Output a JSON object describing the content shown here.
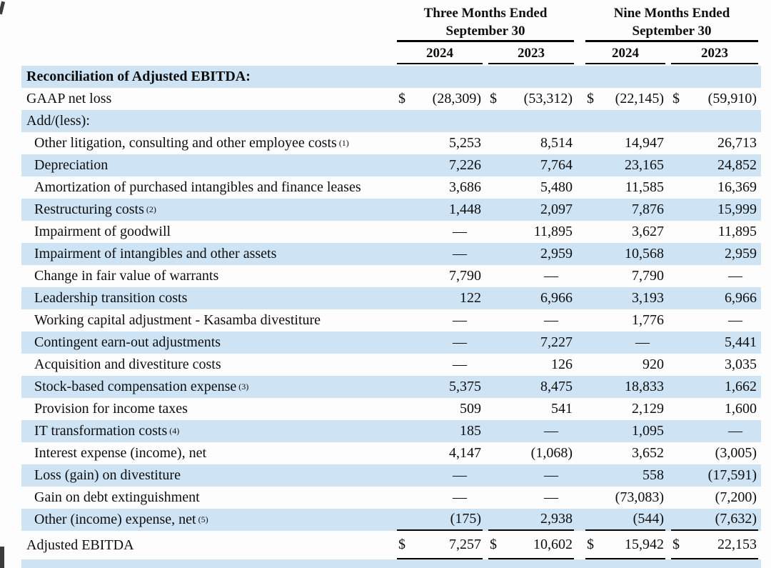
{
  "header": {
    "group1_line1": "Three Months Ended",
    "group1_line2": "September 30",
    "group2_line1": "Nine Months Ended",
    "group2_line2": "September 30",
    "years": [
      "2024",
      "2023",
      "2024",
      "2023"
    ]
  },
  "table": {
    "currency_symbol": "$",
    "empty_dash": "—",
    "rows": [
      {
        "label": "Reconciliation of Adjusted EBITDA:",
        "style": "section",
        "cells": [
          "",
          "",
          "",
          ""
        ]
      },
      {
        "label": "GAAP net loss",
        "style": "item",
        "dollar": true,
        "cells": [
          "(28,309)",
          "(53,312)",
          "(22,145)",
          "(59,910)"
        ]
      },
      {
        "label": "Add/(less):",
        "style": "item",
        "cells": [
          "",
          "",
          "",
          ""
        ]
      },
      {
        "label": "Other litigation, consulting and other employee costs",
        "sup": "(1)",
        "style": "sub",
        "cells": [
          "5,253",
          "8,514",
          "14,947",
          "26,713"
        ]
      },
      {
        "label": "Depreciation",
        "style": "sub",
        "cells": [
          "7,226",
          "7,764",
          "23,165",
          "24,852"
        ]
      },
      {
        "label": "Amortization of purchased intangibles and finance leases",
        "style": "sub",
        "cells": [
          "3,686",
          "5,480",
          "11,585",
          "16,369"
        ]
      },
      {
        "label": "Restructuring costs",
        "sup": "(2)",
        "style": "sub",
        "cells": [
          "1,448",
          "2,097",
          "7,876",
          "15,999"
        ]
      },
      {
        "label": "Impairment of goodwill",
        "style": "sub",
        "cells": [
          "—",
          "11,895",
          "3,627",
          "11,895"
        ]
      },
      {
        "label": "Impairment of intangibles and other assets",
        "style": "sub",
        "cells": [
          "—",
          "2,959",
          "10,568",
          "2,959"
        ]
      },
      {
        "label": "Change in fair value of warrants",
        "style": "sub",
        "cells": [
          "7,790",
          "—",
          "7,790",
          "—"
        ]
      },
      {
        "label": "Leadership transition costs",
        "style": "sub",
        "cells": [
          "122",
          "6,966",
          "3,193",
          "6,966"
        ]
      },
      {
        "label": "Working capital adjustment - Kasamba divestiture",
        "style": "sub",
        "cells": [
          "—",
          "—",
          "1,776",
          "—"
        ]
      },
      {
        "label": "Contingent earn-out adjustments",
        "style": "sub",
        "cells": [
          "—",
          "7,227",
          "—",
          "5,441"
        ]
      },
      {
        "label": "Acquisition and divestiture costs",
        "style": "sub",
        "cells": [
          "—",
          "126",
          "920",
          "3,035"
        ]
      },
      {
        "label": "Stock-based compensation expense",
        "sup": "(3)",
        "style": "sub",
        "cells": [
          "5,375",
          "8,475",
          "18,833",
          "1,662"
        ]
      },
      {
        "label": "Provision for income taxes",
        "style": "sub",
        "cells": [
          "509",
          "541",
          "2,129",
          "1,600"
        ]
      },
      {
        "label": "IT transformation costs",
        "sup": "(4)",
        "style": "sub",
        "cells": [
          "185",
          "—",
          "1,095",
          "—"
        ]
      },
      {
        "label": "Interest expense (income), net",
        "style": "sub",
        "cells": [
          "4,147",
          "(1,068)",
          "3,652",
          "(3,005)"
        ]
      },
      {
        "label": "Loss (gain) on divestiture",
        "style": "sub",
        "cells": [
          "—",
          "—",
          "558",
          "(17,591)"
        ]
      },
      {
        "label": "Gain on debt extinguishment",
        "style": "sub",
        "cells": [
          "—",
          "—",
          "(73,083)",
          "(7,200)"
        ]
      },
      {
        "label": "Other (income) expense, net",
        "sup": "(5)",
        "style": "sub",
        "rule": "single",
        "cells": [
          "(175)",
          "2,938",
          "(544)",
          "(7,632)"
        ]
      },
      {
        "label": "Adjusted EBITDA",
        "style": "total",
        "dollar": true,
        "rule": "double",
        "cells": [
          "7,257",
          "10,602",
          "15,942",
          "22,153"
        ]
      }
    ]
  },
  "colors": {
    "row_blue": "#cee4f5",
    "text": "#0e0e0e",
    "rule": "#000000",
    "page_bg": "#fdfdfd"
  }
}
